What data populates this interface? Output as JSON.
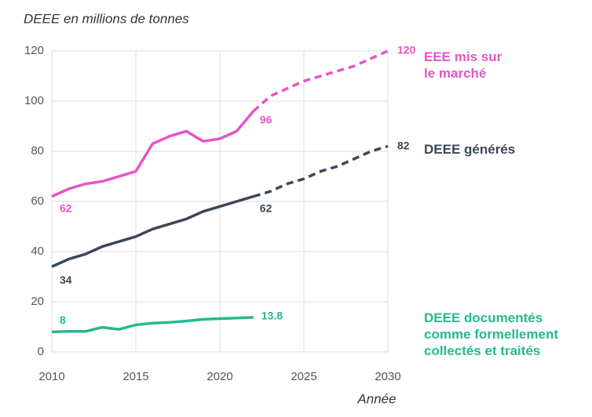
{
  "chart_data": {
    "type": "line",
    "title": "DEEE en millions de tonnes",
    "xlabel": "Année",
    "x": [
      2010,
      2011,
      2012,
      2013,
      2014,
      2015,
      2016,
      2017,
      2018,
      2019,
      2020,
      2021,
      2022,
      2023,
      2024,
      2025,
      2026,
      2027,
      2028,
      2029,
      2030
    ],
    "xlim": [
      2010,
      2030
    ],
    "xticks": [
      2010,
      2015,
      2020,
      2025,
      2030
    ],
    "ylim": [
      0,
      120
    ],
    "yticks": [
      0,
      20,
      40,
      60,
      80,
      100,
      120
    ],
    "grid": true,
    "series": [
      {
        "name": "EEE mis sur le marché",
        "color": "#e754c8",
        "values": [
          62,
          65,
          67,
          68,
          70,
          72,
          83,
          86,
          88,
          84,
          85,
          88,
          96,
          null,
          null,
          null,
          null,
          null,
          null,
          null,
          null
        ],
        "projected_values": [
          null,
          null,
          null,
          null,
          null,
          null,
          null,
          null,
          null,
          null,
          null,
          null,
          96,
          102,
          105,
          108,
          110,
          112,
          114,
          117,
          120
        ]
      },
      {
        "name": "DEEE générés",
        "color": "#3b4759",
        "values": [
          34,
          37,
          39,
          42,
          44,
          46,
          49,
          51,
          53,
          56,
          58,
          60,
          62,
          null,
          null,
          null,
          null,
          null,
          null,
          null,
          null
        ],
        "projected_values": [
          null,
          null,
          null,
          null,
          null,
          null,
          null,
          null,
          null,
          null,
          null,
          null,
          62,
          64,
          67,
          69,
          72,
          74,
          77,
          80,
          82
        ]
      },
      {
        "name": "DEEE documentés comme formellement collectés et traités",
        "color": "#25b98e",
        "values": [
          8,
          8.2,
          8.2,
          9.8,
          9,
          10.8,
          11.5,
          11.8,
          12.3,
          13,
          13.3,
          13.5,
          13.8,
          null,
          null,
          null,
          null,
          null,
          null,
          null,
          null
        ]
      }
    ]
  }
}
